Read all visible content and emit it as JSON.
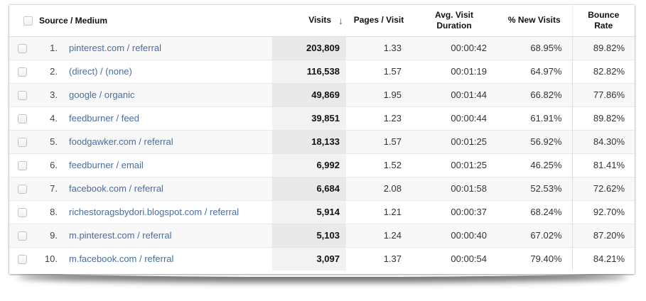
{
  "table": {
    "columns": {
      "source": "Source / Medium",
      "visits": "Visits",
      "pages_per_visit": "Pages / Visit",
      "avg_duration": "Avg. Visit Duration",
      "new_visits": "% New Visits",
      "bounce_rate": "Bounce Rate"
    },
    "sort": {
      "column": "Visits",
      "direction": "descending",
      "icon": "↓"
    },
    "rows": [
      {
        "rank": "1.",
        "source": "pinterest.com / referral",
        "visits": "203,809",
        "pages": "1.33",
        "duration": "00:00:42",
        "new_visits": "68.95%",
        "bounce": "89.82%"
      },
      {
        "rank": "2.",
        "source": "(direct) / (none)",
        "visits": "116,538",
        "pages": "1.57",
        "duration": "00:01:19",
        "new_visits": "64.97%",
        "bounce": "82.82%"
      },
      {
        "rank": "3.",
        "source": "google / organic",
        "visits": "49,869",
        "pages": "1.95",
        "duration": "00:01:44",
        "new_visits": "66.82%",
        "bounce": "77.86%"
      },
      {
        "rank": "4.",
        "source": "feedburner / feed",
        "visits": "39,851",
        "pages": "1.23",
        "duration": "00:00:44",
        "new_visits": "61.91%",
        "bounce": "89.82%"
      },
      {
        "rank": "5.",
        "source": "foodgawker.com / referral",
        "visits": "18,133",
        "pages": "1.57",
        "duration": "00:01:25",
        "new_visits": "56.92%",
        "bounce": "84.30%"
      },
      {
        "rank": "6.",
        "source": "feedburner / email",
        "visits": "6,992",
        "pages": "1.52",
        "duration": "00:01:25",
        "new_visits": "46.25%",
        "bounce": "81.41%"
      },
      {
        "rank": "7.",
        "source": "facebook.com / referral",
        "visits": "6,684",
        "pages": "2.08",
        "duration": "00:01:58",
        "new_visits": "52.53%",
        "bounce": "72.62%"
      },
      {
        "rank": "8.",
        "source": "richestoragsbydori.blogspot.com / referral",
        "visits": "5,914",
        "pages": "1.21",
        "duration": "00:00:37",
        "new_visits": "68.24%",
        "bounce": "92.70%"
      },
      {
        "rank": "9.",
        "source": "m.pinterest.com / referral",
        "visits": "5,103",
        "pages": "1.24",
        "duration": "00:00:40",
        "new_visits": "67.02%",
        "bounce": "87.20%"
      },
      {
        "rank": "10.",
        "source": "m.facebook.com / referral",
        "visits": "3,097",
        "pages": "1.37",
        "duration": "00:00:54",
        "new_visits": "79.40%",
        "bounce": "84.21%"
      }
    ],
    "colors": {
      "link": "#4a6d9e",
      "visits_band_odd": "#e9e9e9",
      "visits_band_even": "#f2f2f2",
      "row_stripe": "#f8f8f8"
    }
  }
}
